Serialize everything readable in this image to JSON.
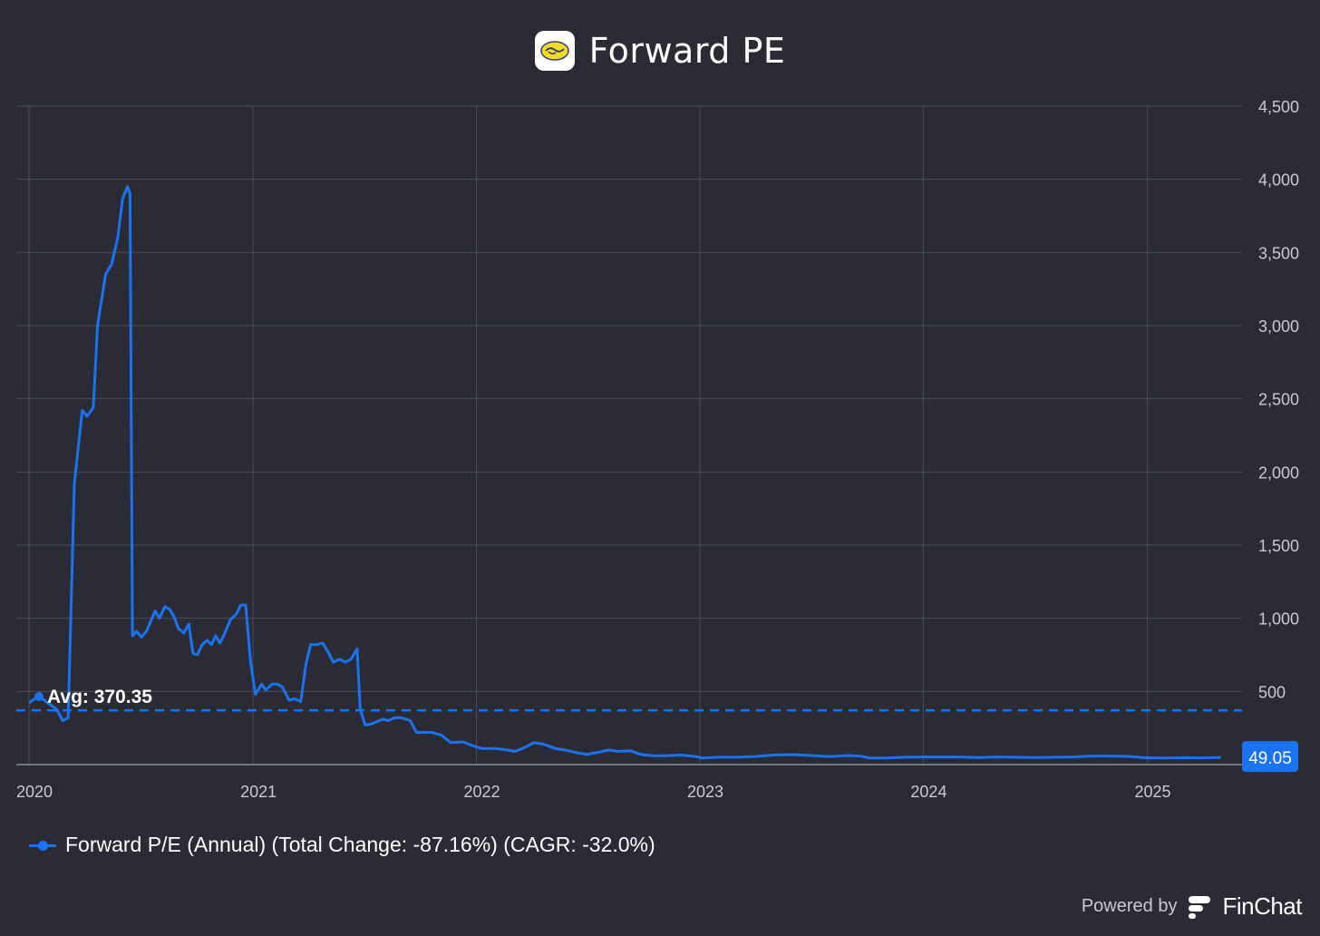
{
  "header": {
    "title": "Forward PE",
    "logo_icon": "handshake-logo-icon"
  },
  "chart_data": {
    "type": "line",
    "title": "Forward PE",
    "xlabel": "",
    "ylabel": "",
    "y_axis_position": "right",
    "xlim": [
      "2020-01-01",
      "2025-05-15"
    ],
    "ylim": [
      0,
      4500
    ],
    "y_ticks": [
      500,
      1000,
      1500,
      2000,
      2500,
      3000,
      3500,
      4000,
      4500
    ],
    "y_tick_labels": [
      "500",
      "1,000",
      "1,500",
      "2,000",
      "2,500",
      "3,000",
      "3,500",
      "4,000",
      "4,500"
    ],
    "x_ticks": [
      "2020",
      "2021",
      "2022",
      "2023",
      "2024",
      "2025"
    ],
    "grid": true,
    "legend_position": "bottom-left",
    "series": [
      {
        "name": "Forward P/E (Annual) (Total Change: -87.16%) (CAGR: -32.0%)",
        "color": "#1a73f0",
        "points": [
          [
            "2020-01-01",
            420
          ],
          [
            "2020-01-10",
            450
          ],
          [
            "2020-01-20",
            460
          ],
          [
            "2020-02-01",
            420
          ],
          [
            "2020-02-15",
            380
          ],
          [
            "2020-02-25",
            300
          ],
          [
            "2020-03-05",
            320
          ],
          [
            "2020-03-15",
            1920
          ],
          [
            "2020-03-28",
            2420
          ],
          [
            "2020-04-05",
            2380
          ],
          [
            "2020-04-15",
            2440
          ],
          [
            "2020-04-22",
            3000
          ],
          [
            "2020-05-05",
            3350
          ],
          [
            "2020-05-15",
            3420
          ],
          [
            "2020-05-25",
            3600
          ],
          [
            "2020-06-02",
            3870
          ],
          [
            "2020-06-10",
            3950
          ],
          [
            "2020-06-14",
            3900
          ],
          [
            "2020-06-18",
            880
          ],
          [
            "2020-06-25",
            910
          ],
          [
            "2020-07-03",
            870
          ],
          [
            "2020-07-12",
            920
          ],
          [
            "2020-07-25",
            1050
          ],
          [
            "2020-08-01",
            1000
          ],
          [
            "2020-08-10",
            1080
          ],
          [
            "2020-08-18",
            1060
          ],
          [
            "2020-08-25",
            1010
          ],
          [
            "2020-09-01",
            930
          ],
          [
            "2020-09-10",
            900
          ],
          [
            "2020-09-18",
            960
          ],
          [
            "2020-09-25",
            760
          ],
          [
            "2020-10-02",
            750
          ],
          [
            "2020-10-10",
            820
          ],
          [
            "2020-10-18",
            850
          ],
          [
            "2020-10-25",
            820
          ],
          [
            "2020-11-01",
            880
          ],
          [
            "2020-11-08",
            830
          ],
          [
            "2020-11-15",
            890
          ],
          [
            "2020-11-25",
            990
          ],
          [
            "2020-12-05",
            1030
          ],
          [
            "2020-12-12",
            1090
          ],
          [
            "2020-12-20",
            1090
          ],
          [
            "2020-12-28",
            700
          ],
          [
            "2021-01-05",
            480
          ],
          [
            "2021-01-15",
            550
          ],
          [
            "2021-01-22",
            510
          ],
          [
            "2021-02-01",
            550
          ],
          [
            "2021-02-10",
            550
          ],
          [
            "2021-02-18",
            530
          ],
          [
            "2021-03-01",
            440
          ],
          [
            "2021-03-10",
            450
          ],
          [
            "2021-03-20",
            430
          ],
          [
            "2021-03-28",
            680
          ],
          [
            "2021-04-05",
            820
          ],
          [
            "2021-04-15",
            820
          ],
          [
            "2021-04-25",
            830
          ],
          [
            "2021-05-05",
            760
          ],
          [
            "2021-05-12",
            700
          ],
          [
            "2021-05-22",
            720
          ],
          [
            "2021-06-01",
            700
          ],
          [
            "2021-06-10",
            720
          ],
          [
            "2021-06-20",
            790
          ],
          [
            "2021-06-25",
            380
          ],
          [
            "2021-07-03",
            270
          ],
          [
            "2021-07-15",
            280
          ],
          [
            "2021-08-01",
            310
          ],
          [
            "2021-08-10",
            300
          ],
          [
            "2021-08-20",
            320
          ],
          [
            "2021-09-01",
            320
          ],
          [
            "2021-09-15",
            300
          ],
          [
            "2021-09-25",
            220
          ],
          [
            "2021-10-05",
            220
          ],
          [
            "2021-10-20",
            220
          ],
          [
            "2021-11-05",
            200
          ],
          [
            "2021-11-20",
            150
          ],
          [
            "2021-12-10",
            155
          ],
          [
            "2021-12-25",
            130
          ],
          [
            "2022-01-10",
            110
          ],
          [
            "2022-02-01",
            110
          ],
          [
            "2022-02-20",
            100
          ],
          [
            "2022-03-05",
            90
          ],
          [
            "2022-03-20",
            115
          ],
          [
            "2022-04-05",
            150
          ],
          [
            "2022-04-20",
            140
          ],
          [
            "2022-05-10",
            110
          ],
          [
            "2022-05-25",
            100
          ],
          [
            "2022-06-15",
            80
          ],
          [
            "2022-07-01",
            70
          ],
          [
            "2022-07-20",
            85
          ],
          [
            "2022-08-05",
            100
          ],
          [
            "2022-08-20",
            90
          ],
          [
            "2022-09-10",
            95
          ],
          [
            "2022-09-25",
            70
          ],
          [
            "2022-10-15",
            60
          ],
          [
            "2022-11-05",
            60
          ],
          [
            "2022-12-01",
            65
          ],
          [
            "2022-12-25",
            55
          ],
          [
            "2023-01-05",
            45
          ],
          [
            "2023-02-01",
            50
          ],
          [
            "2023-03-01",
            50
          ],
          [
            "2023-04-01",
            55
          ],
          [
            "2023-05-01",
            65
          ],
          [
            "2023-06-01",
            68
          ],
          [
            "2023-07-01",
            62
          ],
          [
            "2023-08-01",
            55
          ],
          [
            "2023-09-01",
            62
          ],
          [
            "2023-09-20",
            58
          ],
          [
            "2023-10-05",
            45
          ],
          [
            "2023-11-01",
            45
          ],
          [
            "2023-12-01",
            50
          ],
          [
            "2024-01-01",
            52
          ],
          [
            "2024-02-01",
            52
          ],
          [
            "2024-03-01",
            52
          ],
          [
            "2024-04-01",
            48
          ],
          [
            "2024-05-01",
            52
          ],
          [
            "2024-06-01",
            50
          ],
          [
            "2024-07-01",
            48
          ],
          [
            "2024-08-01",
            50
          ],
          [
            "2024-09-01",
            52
          ],
          [
            "2024-10-01",
            58
          ],
          [
            "2024-11-01",
            58
          ],
          [
            "2024-12-01",
            56
          ],
          [
            "2025-01-01",
            46
          ],
          [
            "2025-02-01",
            45
          ],
          [
            "2025-03-01",
            47
          ],
          [
            "2025-04-01",
            46
          ],
          [
            "2025-05-01",
            49.05
          ]
        ]
      }
    ],
    "average": {
      "label": "Avg: 370.35",
      "value": 370.35
    },
    "last_value": {
      "label": "49.05",
      "value": 49.05
    }
  },
  "legend": {
    "label": "Forward P/E (Annual) (Total Change: -87.16%) (CAGR: -32.0%)"
  },
  "footer": {
    "powered_by": "Powered by",
    "brand": "FinChat",
    "brand_icon": "finchat-logo-icon"
  },
  "colors": {
    "background": "#2a2b35",
    "accent": "#1a73f0",
    "grid": "#4a4c57",
    "tick_text": "#c9cad0"
  }
}
